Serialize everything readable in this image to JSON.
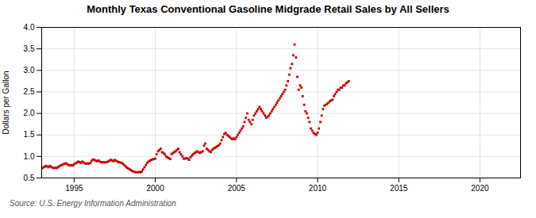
{
  "chart_data": {
    "type": "scatter",
    "title": "Monthly Texas Conventional Gasoline Midgrade Retail Sales by All Sellers",
    "ylabel": "Dollars per Gallon",
    "caption": "Source: U.S. Energy Information Administration",
    "color": "#cc0000",
    "marker": "square",
    "grid": true,
    "xlim": [
      1993.0,
      2022.5
    ],
    "ylim": [
      0.5,
      4.0
    ],
    "xticks": [
      1995,
      2000,
      2005,
      2010,
      2015,
      2020
    ],
    "yticks": [
      0.5,
      {
        "value": 1.0,
        "label": "1.0"
      },
      1.5,
      {
        "value": 2.0,
        "label": "2.0"
      },
      2.5,
      {
        "value": 3.0,
        "label": "3.0"
      },
      3.5,
      {
        "value": 4.0,
        "label": "4.0"
      }
    ],
    "x": [
      1993.0,
      1993.08,
      1993.17,
      1993.25,
      1993.33,
      1993.42,
      1993.5,
      1993.58,
      1993.67,
      1993.75,
      1993.83,
      1993.92,
      1994.0,
      1994.08,
      1994.17,
      1994.25,
      1994.33,
      1994.42,
      1994.5,
      1994.58,
      1994.67,
      1994.75,
      1994.83,
      1994.92,
      1995.0,
      1995.08,
      1995.17,
      1995.25,
      1995.33,
      1995.42,
      1995.5,
      1995.58,
      1995.67,
      1995.75,
      1995.83,
      1995.92,
      1996.0,
      1996.08,
      1996.17,
      1996.25,
      1996.33,
      1996.42,
      1996.5,
      1996.58,
      1996.67,
      1996.75,
      1996.83,
      1996.92,
      1997.0,
      1997.08,
      1997.17,
      1997.25,
      1997.33,
      1997.42,
      1997.5,
      1997.58,
      1997.67,
      1997.75,
      1997.83,
      1997.92,
      1998.0,
      1998.08,
      1998.17,
      1998.25,
      1998.33,
      1998.42,
      1998.5,
      1998.58,
      1998.67,
      1998.75,
      1998.83,
      1998.92,
      1999.0,
      1999.08,
      1999.17,
      1999.25,
      1999.33,
      1999.42,
      1999.5,
      1999.58,
      1999.67,
      1999.75,
      1999.83,
      1999.92,
      2000.0,
      2000.08,
      2000.17,
      2000.25,
      2000.33,
      2000.42,
      2000.5,
      2000.58,
      2000.67,
      2000.75,
      2000.83,
      2000.92,
      2001.0,
      2001.08,
      2001.17,
      2001.25,
      2001.33,
      2001.42,
      2001.5,
      2001.58,
      2001.67,
      2001.75,
      2001.83,
      2001.92,
      2002.0,
      2002.08,
      2002.17,
      2002.25,
      2002.33,
      2002.42,
      2002.5,
      2002.58,
      2002.67,
      2002.75,
      2002.83,
      2002.92,
      2003.0,
      2003.08,
      2003.17,
      2003.25,
      2003.33,
      2003.42,
      2003.5,
      2003.58,
      2003.67,
      2003.75,
      2003.83,
      2003.92,
      2004.0,
      2004.08,
      2004.17,
      2004.25,
      2004.33,
      2004.42,
      2004.5,
      2004.58,
      2004.67,
      2004.75,
      2004.83,
      2004.92,
      2005.0,
      2005.08,
      2005.17,
      2005.25,
      2005.33,
      2005.42,
      2005.5,
      2005.58,
      2005.67,
      2005.75,
      2005.83,
      2005.92,
      2006.0,
      2006.08,
      2006.17,
      2006.25,
      2006.33,
      2006.42,
      2006.5,
      2006.58,
      2006.67,
      2006.75,
      2006.83,
      2006.92,
      2007.0,
      2007.08,
      2007.17,
      2007.25,
      2007.33,
      2007.42,
      2007.5,
      2007.58,
      2007.67,
      2007.75,
      2007.83,
      2007.92,
      2008.0,
      2008.08,
      2008.17,
      2008.25,
      2008.33,
      2008.42,
      2008.5,
      2008.58,
      2008.67,
      2008.75,
      2008.83,
      2008.92,
      2009.0,
      2009.08,
      2009.17,
      2009.25,
      2009.33,
      2009.42,
      2009.5,
      2009.58,
      2009.67,
      2009.75,
      2009.83,
      2009.92,
      2010.0,
      2010.08,
      2010.17,
      2010.25,
      2010.33,
      2010.42,
      2010.5,
      2010.58,
      2010.67,
      2010.75,
      2010.83,
      2010.92,
      2011.0,
      2011.08,
      2011.17,
      2011.25,
      2011.33,
      2011.42,
      2011.5,
      2011.58,
      2011.67,
      2011.75,
      2011.83,
      2011.92
    ],
    "values": [
      0.72,
      0.74,
      0.76,
      0.78,
      0.77,
      0.75,
      0.78,
      0.76,
      0.74,
      0.73,
      0.74,
      0.73,
      0.75,
      0.77,
      0.79,
      0.8,
      0.82,
      0.83,
      0.84,
      0.82,
      0.8,
      0.79,
      0.8,
      0.79,
      0.82,
      0.84,
      0.86,
      0.88,
      0.87,
      0.85,
      0.88,
      0.86,
      0.84,
      0.83,
      0.84,
      0.83,
      0.85,
      0.9,
      0.93,
      0.92,
      0.9,
      0.89,
      0.91,
      0.88,
      0.87,
      0.86,
      0.87,
      0.86,
      0.87,
      0.88,
      0.9,
      0.92,
      0.91,
      0.89,
      0.92,
      0.9,
      0.88,
      0.87,
      0.86,
      0.85,
      0.83,
      0.8,
      0.77,
      0.74,
      0.72,
      0.7,
      0.68,
      0.66,
      0.65,
      0.64,
      0.63,
      0.63,
      0.64,
      0.63,
      0.65,
      0.7,
      0.75,
      0.8,
      0.85,
      0.88,
      0.9,
      0.92,
      0.93,
      0.94,
      0.95,
      1.05,
      1.12,
      1.15,
      1.18,
      1.1,
      1.08,
      1.05,
      1.0,
      0.98,
      0.96,
      0.94,
      1.05,
      1.08,
      1.1,
      1.12,
      1.15,
      1.18,
      1.1,
      1.05,
      1.0,
      0.95,
      0.95,
      0.96,
      0.95,
      0.92,
      0.98,
      1.02,
      1.05,
      1.08,
      1.1,
      1.12,
      1.1,
      1.08,
      1.1,
      1.12,
      1.25,
      1.3,
      1.18,
      1.15,
      1.12,
      1.1,
      1.15,
      1.18,
      1.2,
      1.22,
      1.24,
      1.26,
      1.3,
      1.38,
      1.45,
      1.52,
      1.55,
      1.5,
      1.48,
      1.45,
      1.42,
      1.4,
      1.42,
      1.4,
      1.45,
      1.5,
      1.55,
      1.6,
      1.65,
      1.7,
      1.8,
      1.9,
      2.0,
      1.85,
      1.8,
      1.75,
      1.85,
      1.95,
      2.0,
      2.05,
      2.1,
      2.15,
      2.1,
      2.05,
      2.0,
      1.95,
      1.9,
      1.92,
      1.95,
      2.0,
      2.05,
      2.1,
      2.15,
      2.2,
      2.25,
      2.3,
      2.35,
      2.4,
      2.45,
      2.5,
      2.55,
      2.65,
      2.75,
      2.9,
      3.05,
      3.15,
      3.35,
      3.6,
      3.3,
      2.85,
      2.55,
      2.65,
      2.6,
      2.4,
      2.2,
      2.05,
      2.0,
      1.9,
      1.8,
      1.65,
      1.6,
      1.55,
      1.52,
      1.5,
      1.55,
      1.65,
      1.8,
      1.95,
      2.1,
      2.18,
      2.2,
      2.22,
      2.25,
      2.28,
      2.3,
      2.32,
      2.4,
      2.45,
      2.5,
      2.55,
      2.55,
      2.6,
      2.6,
      2.65,
      2.65,
      2.7,
      2.72,
      2.75
    ]
  }
}
